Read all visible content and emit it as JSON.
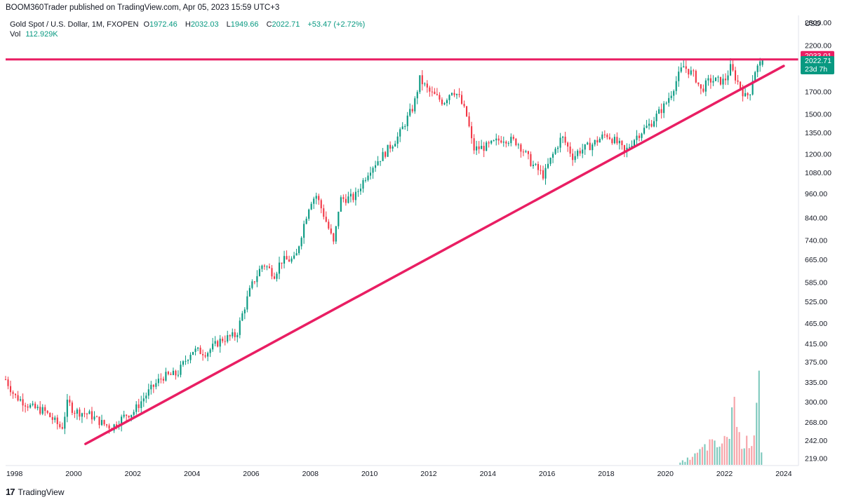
{
  "header": {
    "publish_line": "BOOM360Trader published on TradingView.com, Apr 05, 2023 15:59 UTC+3"
  },
  "legend": {
    "symbol": "Gold Spot / U.S. Dollar, 1M, FXOPEN",
    "o_label": "O",
    "o_value": "1972.46",
    "h_label": "H",
    "h_value": "2032.03",
    "l_label": "L",
    "l_value": "1949.66",
    "c_label": "C",
    "c_value": "2022.71",
    "change": "+53.47 (+2.72%)",
    "vol_label": "Vol",
    "vol_value": "112.929K"
  },
  "price_axis": {
    "currency": "USD",
    "ticks": [
      "2500.00",
      "2200.00",
      "1700.00",
      "1500.00",
      "1350.00",
      "1200.00",
      "1080.00",
      "960.00",
      "840.00",
      "740.00",
      "665.00",
      "585.00",
      "525.00",
      "465.00",
      "415.00",
      "375.00",
      "335.00",
      "300.00",
      "268.00",
      "242.00",
      "219.00"
    ]
  },
  "labels": {
    "resistance": "2033.01",
    "last_price": "2022.71",
    "countdown": "23d 7h"
  },
  "colors": {
    "up": "#089981",
    "down": "#f23645",
    "vol_up": "#7ec9bd",
    "vol_down": "#f6a3a8",
    "line": "#e91e63"
  },
  "footer": {
    "brand": "TradingView"
  },
  "chart_data": {
    "type": "candlestick",
    "title": "Gold Spot / U.S. Dollar, 1M, FXOPEN",
    "x_ticks": [
      "1998",
      "2000",
      "2002",
      "2004",
      "2006",
      "2008",
      "2010",
      "2012",
      "2014",
      "2016",
      "2018",
      "2020",
      "2022",
      "2024"
    ],
    "y_scale": "log",
    "ylim": [
      210,
      2600
    ],
    "xlim": [
      1997.7,
      2024.5
    ],
    "last_bar": {
      "date": "2023-04",
      "open": 1972.46,
      "high": 2032.03,
      "low": 1949.66,
      "close": 2022.71,
      "volume": "112.929K"
    },
    "close_anchors": [
      [
        1997.7,
        340
      ],
      [
        1998.0,
        310
      ],
      [
        1998.6,
        290
      ],
      [
        1999.0,
        285
      ],
      [
        1999.6,
        258
      ],
      [
        1999.8,
        300
      ],
      [
        2000.0,
        285
      ],
      [
        2000.5,
        280
      ],
      [
        2001.0,
        265
      ],
      [
        2001.3,
        260
      ],
      [
        2001.8,
        280
      ],
      [
        2002.0,
        282
      ],
      [
        2002.5,
        315
      ],
      [
        2003.0,
        345
      ],
      [
        2003.5,
        350
      ],
      [
        2004.0,
        400
      ],
      [
        2004.5,
        395
      ],
      [
        2005.0,
        425
      ],
      [
        2005.5,
        435
      ],
      [
        2006.0,
        570
      ],
      [
        2006.4,
        650
      ],
      [
        2006.8,
        610
      ],
      [
        2007.0,
        660
      ],
      [
        2007.5,
        665
      ],
      [
        2008.0,
        920
      ],
      [
        2008.2,
        950
      ],
      [
        2008.8,
        720
      ],
      [
        2009.0,
        930
      ],
      [
        2009.5,
        940
      ],
      [
        2010.0,
        1100
      ],
      [
        2010.5,
        1200
      ],
      [
        2011.0,
        1330
      ],
      [
        2011.5,
        1570
      ],
      [
        2011.7,
        1820
      ],
      [
        2012.0,
        1700
      ],
      [
        2012.5,
        1600
      ],
      [
        2012.8,
        1720
      ],
      [
        2013.0,
        1660
      ],
      [
        2013.3,
        1470
      ],
      [
        2013.5,
        1230
      ],
      [
        2014.0,
        1250
      ],
      [
        2014.5,
        1310
      ],
      [
        2015.0,
        1280
      ],
      [
        2015.5,
        1130
      ],
      [
        2015.9,
        1060
      ],
      [
        2016.0,
        1110
      ],
      [
        2016.5,
        1320
      ],
      [
        2016.9,
        1170
      ],
      [
        2017.0,
        1210
      ],
      [
        2017.5,
        1260
      ],
      [
        2018.0,
        1340
      ],
      [
        2018.5,
        1250
      ],
      [
        2018.6,
        1200
      ],
      [
        2019.0,
        1320
      ],
      [
        2019.5,
        1420
      ],
      [
        2020.0,
        1580
      ],
      [
        2020.2,
        1690
      ],
      [
        2020.6,
        1960
      ],
      [
        2021.0,
        1850
      ],
      [
        2021.2,
        1710
      ],
      [
        2021.5,
        1810
      ],
      [
        2022.0,
        1800
      ],
      [
        2022.2,
        1940
      ],
      [
        2022.5,
        1760
      ],
      [
        2022.7,
        1650
      ],
      [
        2022.85,
        1680
      ],
      [
        2023.0,
        1900
      ],
      [
        2023.2,
        1980
      ],
      [
        2023.27,
        2022.71
      ]
    ],
    "volume_anchors": [
      [
        2020.5,
        3
      ],
      [
        2021.0,
        12
      ],
      [
        2021.3,
        22
      ],
      [
        2021.5,
        28
      ],
      [
        2021.7,
        24
      ],
      [
        2022.0,
        30
      ],
      [
        2022.2,
        48
      ],
      [
        2022.3,
        95
      ],
      [
        2022.5,
        35
      ],
      [
        2022.7,
        28
      ],
      [
        2022.9,
        32
      ],
      [
        2023.0,
        45
      ],
      [
        2023.1,
        118
      ],
      [
        2023.2,
        125
      ],
      [
        2023.27,
        14
      ]
    ],
    "resistance_level": 2033.01,
    "trendline": [
      [
        2000.4,
        237
      ],
      [
        2024.0,
        1960
      ]
    ]
  }
}
